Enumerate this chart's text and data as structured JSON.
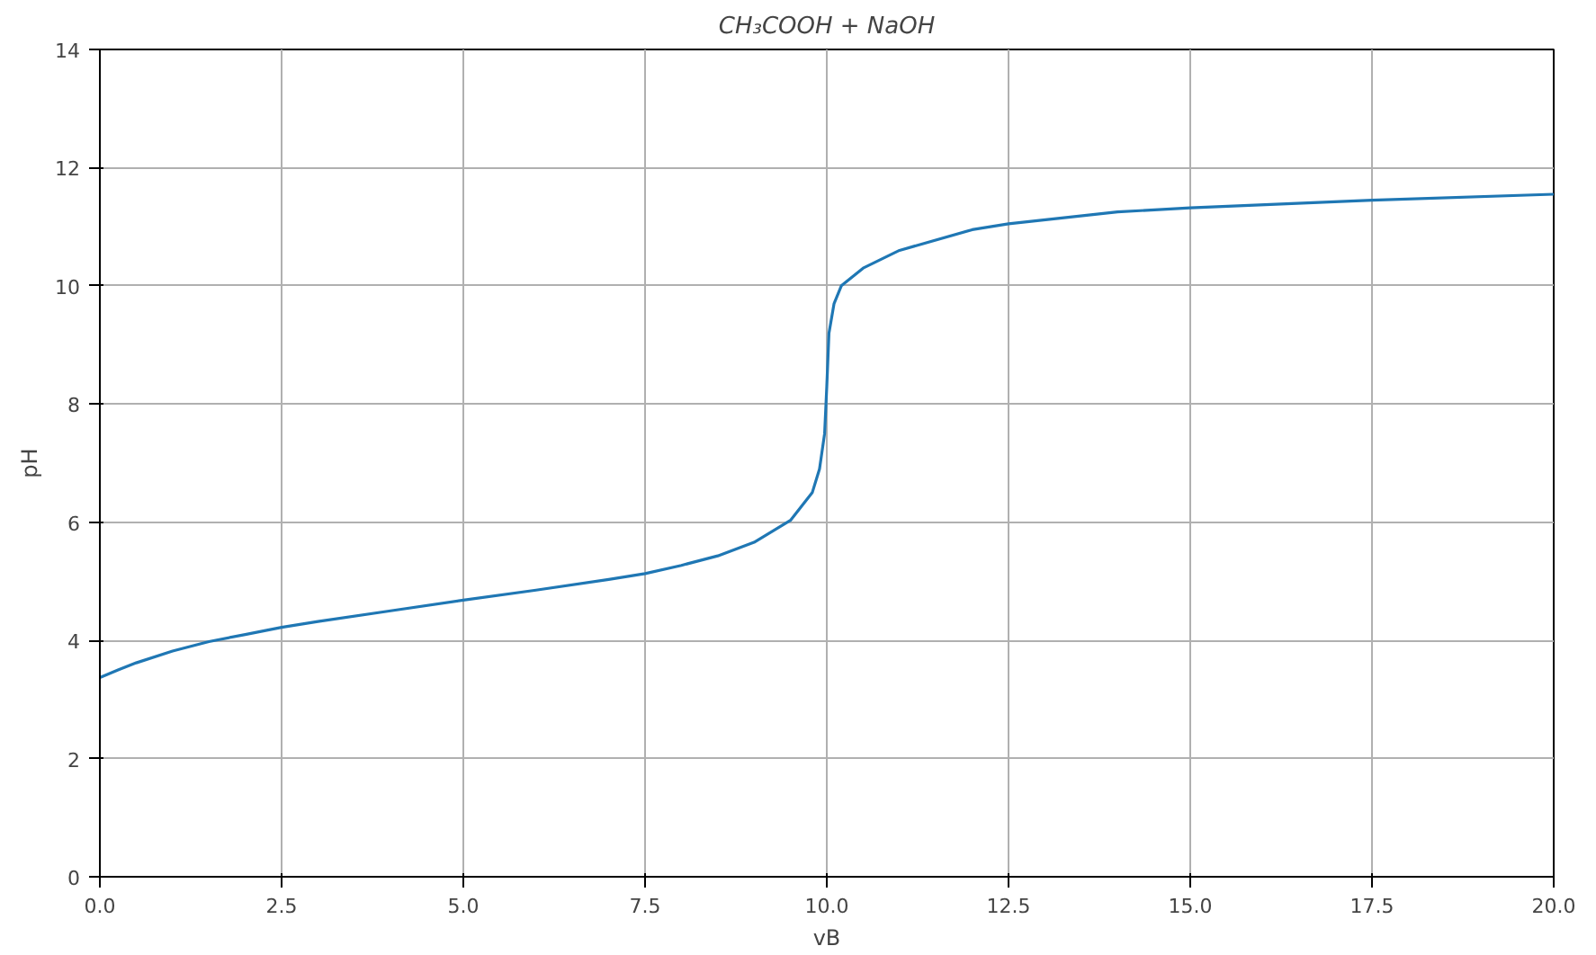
{
  "chart_data": {
    "type": "line",
    "title": "CH₃COOH + NaOH",
    "xlabel": "vB",
    "ylabel": "pH",
    "x": [
      0,
      0.25,
      0.5,
      1.0,
      1.5,
      2.0,
      2.5,
      3.0,
      4.0,
      5.0,
      6.0,
      7.0,
      7.5,
      8.0,
      8.5,
      9.0,
      9.5,
      9.8,
      9.9,
      9.97,
      10.0,
      10.03,
      10.1,
      10.2,
      10.5,
      11.0,
      12.0,
      12.5,
      14.0,
      15.0,
      17.5,
      20.0
    ],
    "series": [
      {
        "color": "#1f77b4",
        "values": [
          3.37,
          3.5,
          3.62,
          3.82,
          3.98,
          4.1,
          4.22,
          4.32,
          4.5,
          4.68,
          4.85,
          5.03,
          5.13,
          5.27,
          5.43,
          5.66,
          6.03,
          6.5,
          6.9,
          7.5,
          8.3,
          9.2,
          9.7,
          10.0,
          10.3,
          10.6,
          10.95,
          11.05,
          11.25,
          11.32,
          11.45,
          11.55
        ]
      }
    ],
    "xlim": [
      0,
      20
    ],
    "ylim": [
      0,
      14
    ],
    "xticks": [
      {
        "value": 0,
        "label": "0.0"
      },
      {
        "value": 2.5,
        "label": "2.5"
      },
      {
        "value": 5,
        "label": "5.0"
      },
      {
        "value": 7.5,
        "label": "7.5"
      },
      {
        "value": 10,
        "label": "10.0"
      },
      {
        "value": 12.5,
        "label": "12.5"
      },
      {
        "value": 15,
        "label": "15.0"
      },
      {
        "value": 17.5,
        "label": "17.5"
      },
      {
        "value": 20,
        "label": "20.0"
      }
    ],
    "yticks": [
      0,
      2,
      4,
      6,
      8,
      10,
      12,
      14
    ],
    "grid": true,
    "marker": "none",
    "line_style": "solid"
  }
}
